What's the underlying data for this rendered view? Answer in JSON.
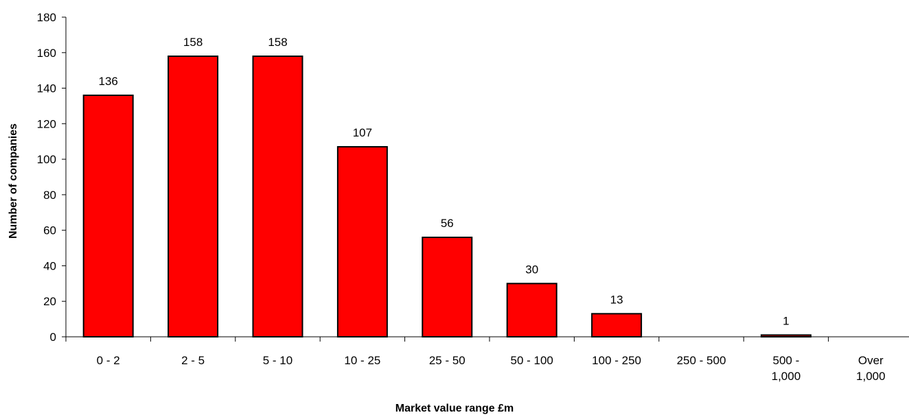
{
  "chart_data": {
    "type": "bar",
    "title": "",
    "xlabel": "Market value range £m",
    "ylabel": "Number of companies",
    "categories": [
      [
        "0 - 2"
      ],
      [
        "2 - 5"
      ],
      [
        "5 - 10"
      ],
      [
        "10 - 25"
      ],
      [
        "25 - 50"
      ],
      [
        "50 - 100"
      ],
      [
        "100 - 250"
      ],
      [
        "250 - 500"
      ],
      [
        "500 -",
        "1,000"
      ],
      [
        "Over",
        "1,000"
      ]
    ],
    "values": [
      136,
      158,
      158,
      107,
      56,
      30,
      13,
      0,
      1,
      0
    ],
    "data_labels": [
      "136",
      "158",
      "158",
      "107",
      "56",
      "30",
      "13",
      "",
      "1",
      ""
    ],
    "ylim": [
      0,
      180
    ],
    "yticks": [
      0,
      20,
      40,
      60,
      80,
      100,
      120,
      140,
      160,
      180
    ],
    "grid": false,
    "legend": "none",
    "bar_color": "#ff0000",
    "bar_edge_color": "#000000"
  }
}
